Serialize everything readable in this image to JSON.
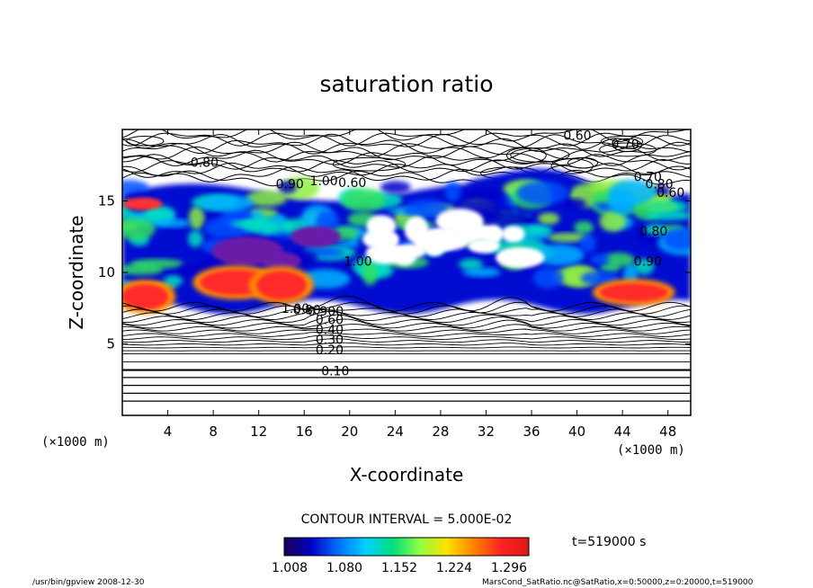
{
  "chart_data": {
    "type": "heatmap",
    "title": "saturation ratio",
    "xlabel": "X-coordinate",
    "ylabel": "Z-coordinate",
    "x_unit": "(×1000 m)",
    "y_unit": "(×1000 m)",
    "xlim": [
      0,
      50
    ],
    "ylim": [
      0,
      20
    ],
    "x_ticks": [
      "4",
      "8",
      "12",
      "16",
      "20",
      "24",
      "28",
      "32",
      "36",
      "40",
      "44",
      "48"
    ],
    "y_ticks": [
      "5",
      "10",
      "15"
    ],
    "contour_interval_text": "CONTOUR INTERVAL = 5.000E-02",
    "contour_labels": [
      "0.60",
      "0.70",
      "0.80",
      "0.90",
      "1.00",
      "0.60",
      "0.70",
      "0.80",
      "0.60",
      "0.80",
      "0.90",
      "1.00",
      "1.00",
      "0.80",
      "0.900",
      "0.60",
      "0.40",
      "0.30",
      "0.20",
      "0.10"
    ],
    "colorbar": {
      "ticks": [
        "1.008",
        "1.080",
        "1.152",
        "1.224",
        "1.296"
      ],
      "colormap": [
        "#1a0050",
        "#0000c8",
        "#0070ff",
        "#00d0ff",
        "#00e080",
        "#90ff40",
        "#ffe000",
        "#ff8000",
        "#ff2020",
        "#e01818"
      ]
    },
    "time_label": "t=519000 s",
    "footer_left": "/usr/bin/gpview  2008-12-30",
    "footer_right": "MarsCond_SatRatio.nc@SatRatio,x=0:50000,z=0:20000,t=519000",
    "grid": false
  }
}
